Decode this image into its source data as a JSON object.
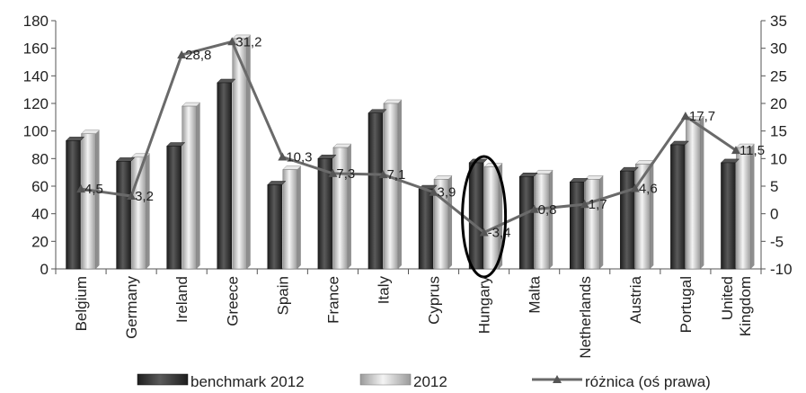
{
  "chart_data": {
    "type": "bar",
    "categories": [
      "Belgium",
      "Germany",
      "Ireland",
      "Greece",
      "Spain",
      "France",
      "Italy",
      "Cyprus",
      "Hungary",
      "Malta",
      "Netherlands",
      "Austria",
      "Portugal",
      "United Kingdom"
    ],
    "series": [
      {
        "name": "benchmark 2012",
        "type": "bar",
        "axis": "left",
        "color": "#3a3a3a",
        "values": [
          93,
          78,
          89,
          135,
          61,
          80,
          113,
          58,
          77,
          67,
          63,
          71,
          90,
          77
        ]
      },
      {
        "name": "2012",
        "type": "bar",
        "axis": "left",
        "color": "#cfcfcf",
        "values": [
          98,
          81,
          118,
          167,
          72,
          88,
          120,
          65,
          74,
          69,
          65,
          76,
          108,
          88
        ]
      },
      {
        "name": "różnica (oś prawa)",
        "type": "line",
        "axis": "right",
        "color": "#6a6a6a",
        "values": [
          4.5,
          3.2,
          28.8,
          31.2,
          10.3,
          7.3,
          7.1,
          3.9,
          -3.4,
          0.8,
          1.7,
          4.6,
          17.7,
          11.5
        ],
        "labels": [
          "4,5",
          "3,2",
          "28,8",
          "31,2",
          "10,3",
          "7,3",
          "7,1",
          "3,9",
          "-3,4",
          "0,8",
          "1,7",
          "4,6",
          "17,7",
          "11,5"
        ]
      }
    ],
    "y_left": {
      "min": 0,
      "max": 180,
      "ticks": [
        "0",
        "20",
        "40",
        "60",
        "80",
        "100",
        "120",
        "140",
        "160",
        "180"
      ]
    },
    "y_right": {
      "min": -10,
      "max": 35,
      "ticks": [
        "-10",
        "-5",
        "0",
        "5",
        "10",
        "15",
        "20",
        "25",
        "30",
        "35"
      ]
    },
    "highlight_category": "Hungary",
    "grid": false,
    "legend_position": "bottom"
  }
}
